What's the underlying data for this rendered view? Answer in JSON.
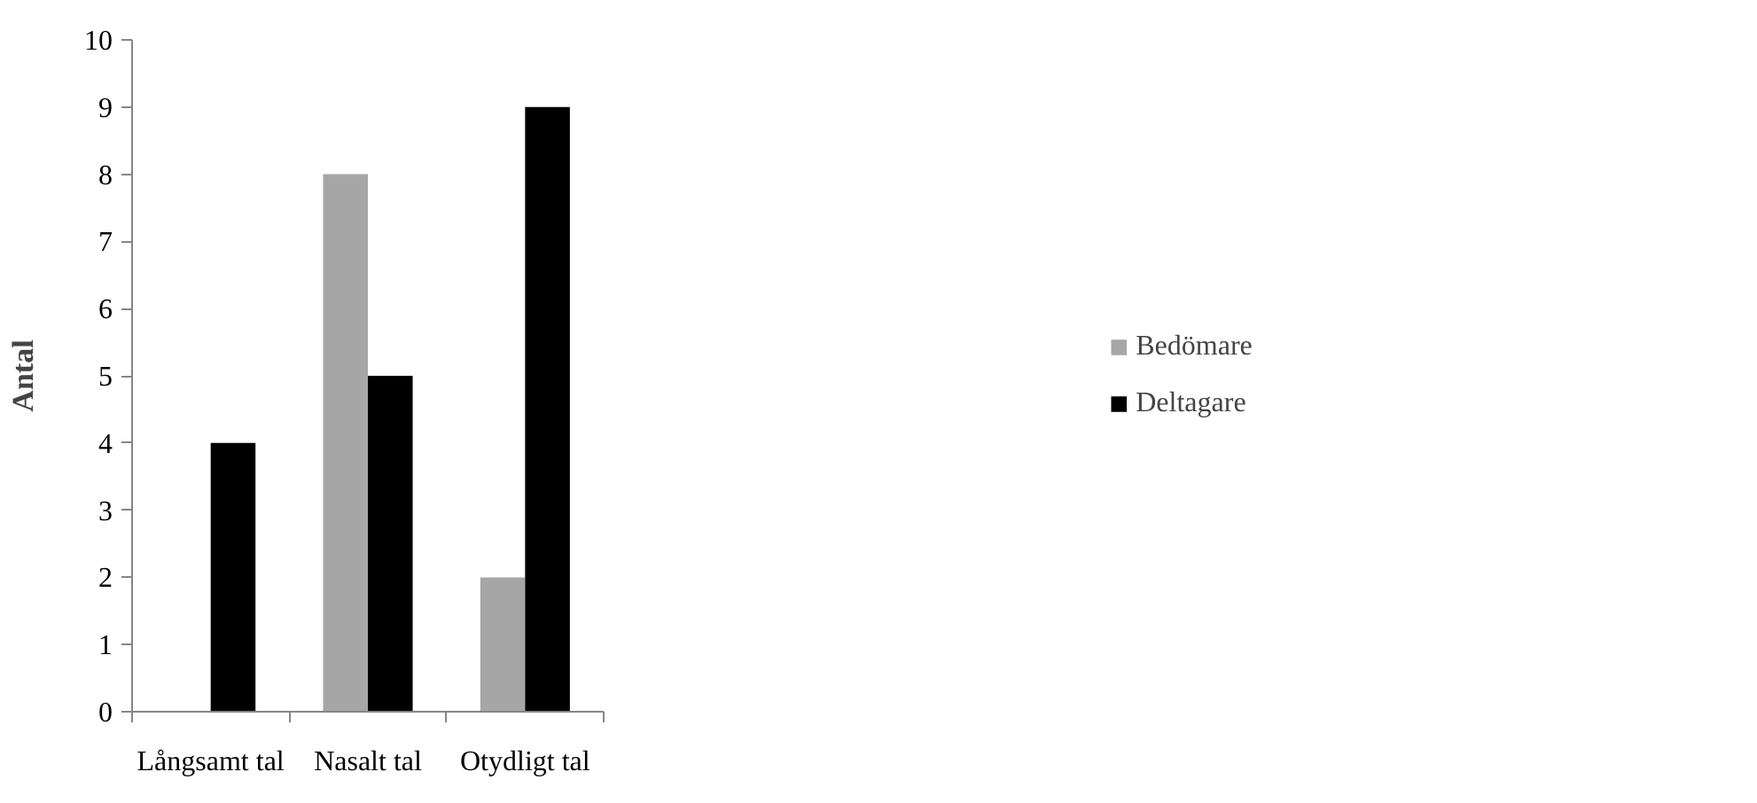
{
  "chart_data": {
    "type": "bar",
    "ylabel": "Antal",
    "categories": [
      "Långsamt tal",
      "Nasalt tal",
      "Otydligt tal"
    ],
    "series": [
      {
        "name": "Bedömare",
        "color": "#a6a6a6",
        "values": [
          0,
          8,
          2
        ]
      },
      {
        "name": "Deltagare",
        "color": "#000000",
        "values": [
          4,
          5,
          9
        ]
      }
    ],
    "ylim": [
      0,
      10
    ],
    "yticks": [
      0,
      1,
      2,
      3,
      4,
      5,
      6,
      7,
      8,
      9,
      10
    ],
    "grid": false,
    "legend": "right"
  }
}
